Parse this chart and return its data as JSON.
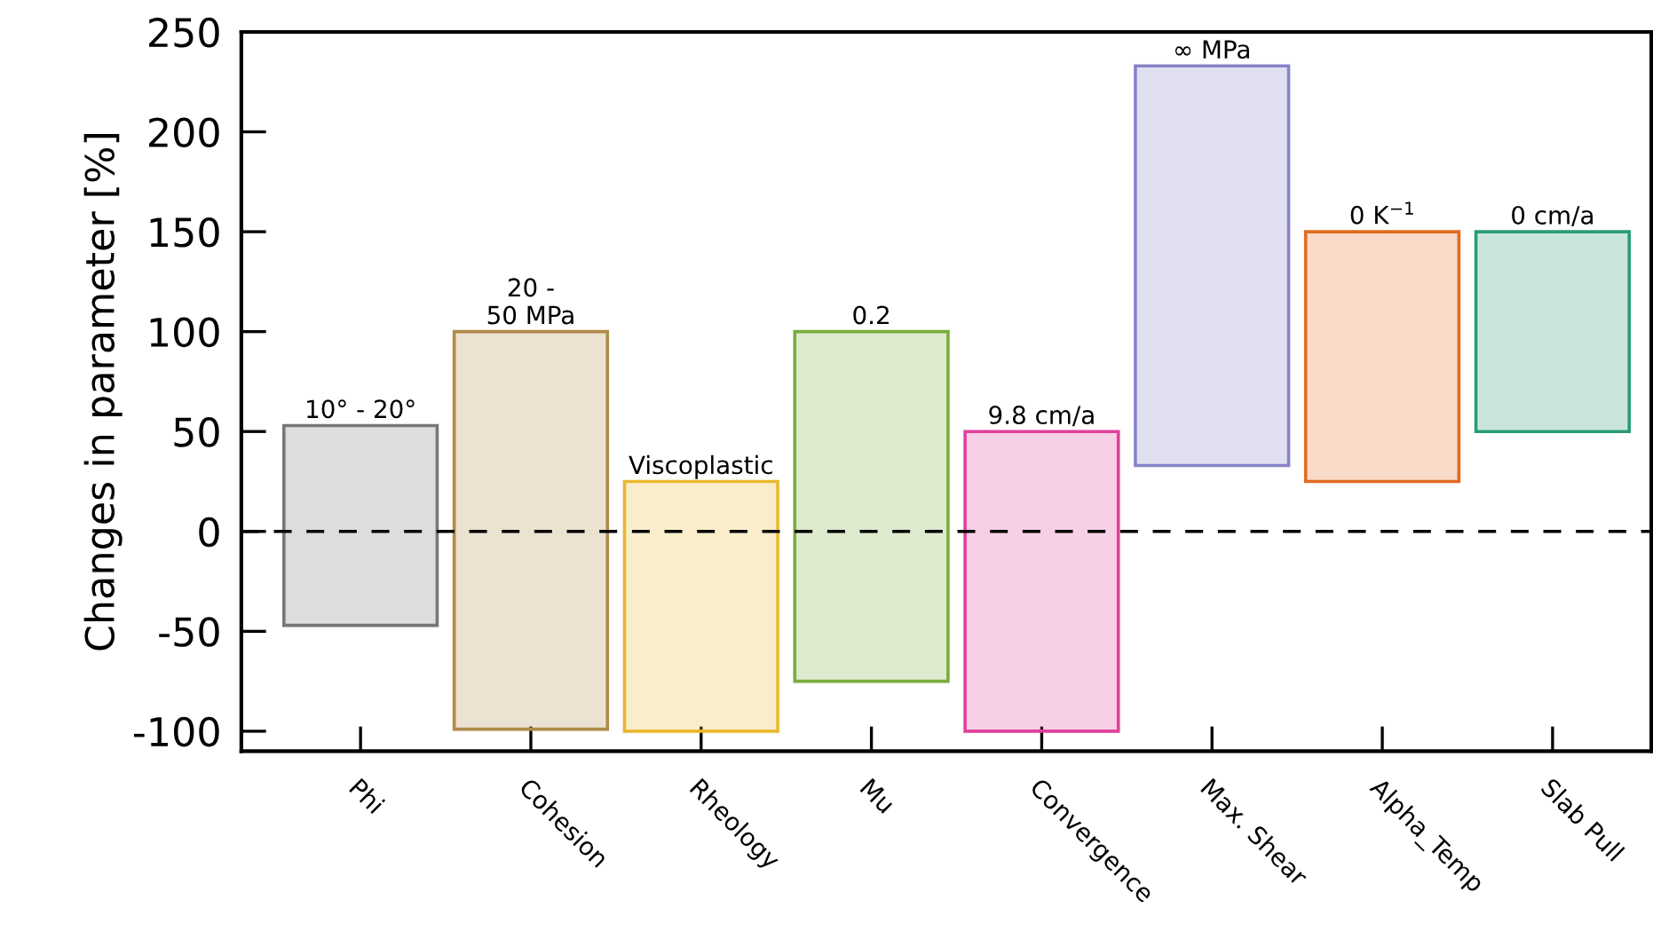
{
  "chart_data": {
    "type": "bar",
    "ylabel": "Changes in parameter [%]",
    "categories": [
      "Phi",
      "Cohesion",
      "Rheology",
      "Mu",
      "Convergence",
      "Max. Shear",
      "Alpha_Temp",
      "Slab Pull"
    ],
    "values": [
      100,
      199,
      125,
      175,
      150,
      200,
      125,
      100
    ],
    "base": [
      -47,
      -99,
      -100,
      -75,
      -100,
      33,
      25,
      50
    ],
    "colors": [
      "#777777",
      "#b08a4a",
      "#e8b830",
      "#7aac3c",
      "#e0409a",
      "#8884c8",
      "#e06c20",
      "#2a9c74"
    ],
    "annotations": [
      {
        "text": "10° - 20°",
        "x": "Phi",
        "y": 53
      },
      {
        "text": "20 -\n50 MPa",
        "x": "Cohesion",
        "y": 100
      },
      {
        "text": "Viscoplastic",
        "x": "Rheology",
        "y": 25
      },
      {
        "text": "0.2",
        "x": "Mu",
        "y": 100
      },
      {
        "text": "9.8 cm/a",
        "x": "Convergence",
        "y": 50
      },
      {
        "text": "∞ MPa",
        "x": "Max. Shear",
        "y": 233
      },
      {
        "text": "0 K$^{−1}$",
        "x": "Alpha_Temp",
        "y": 150
      },
      {
        "text": "0 cm/a",
        "x": "Slab Pull",
        "y": 150
      }
    ],
    "ylim": [
      -110,
      250
    ],
    "yticks": [
      -100,
      -50,
      0,
      50,
      100,
      150,
      200,
      250
    ],
    "ref_lines": [
      {
        "axis": "y",
        "value": 0,
        "line_style": "dashed",
        "color": "#000000"
      }
    ],
    "grid": false
  }
}
